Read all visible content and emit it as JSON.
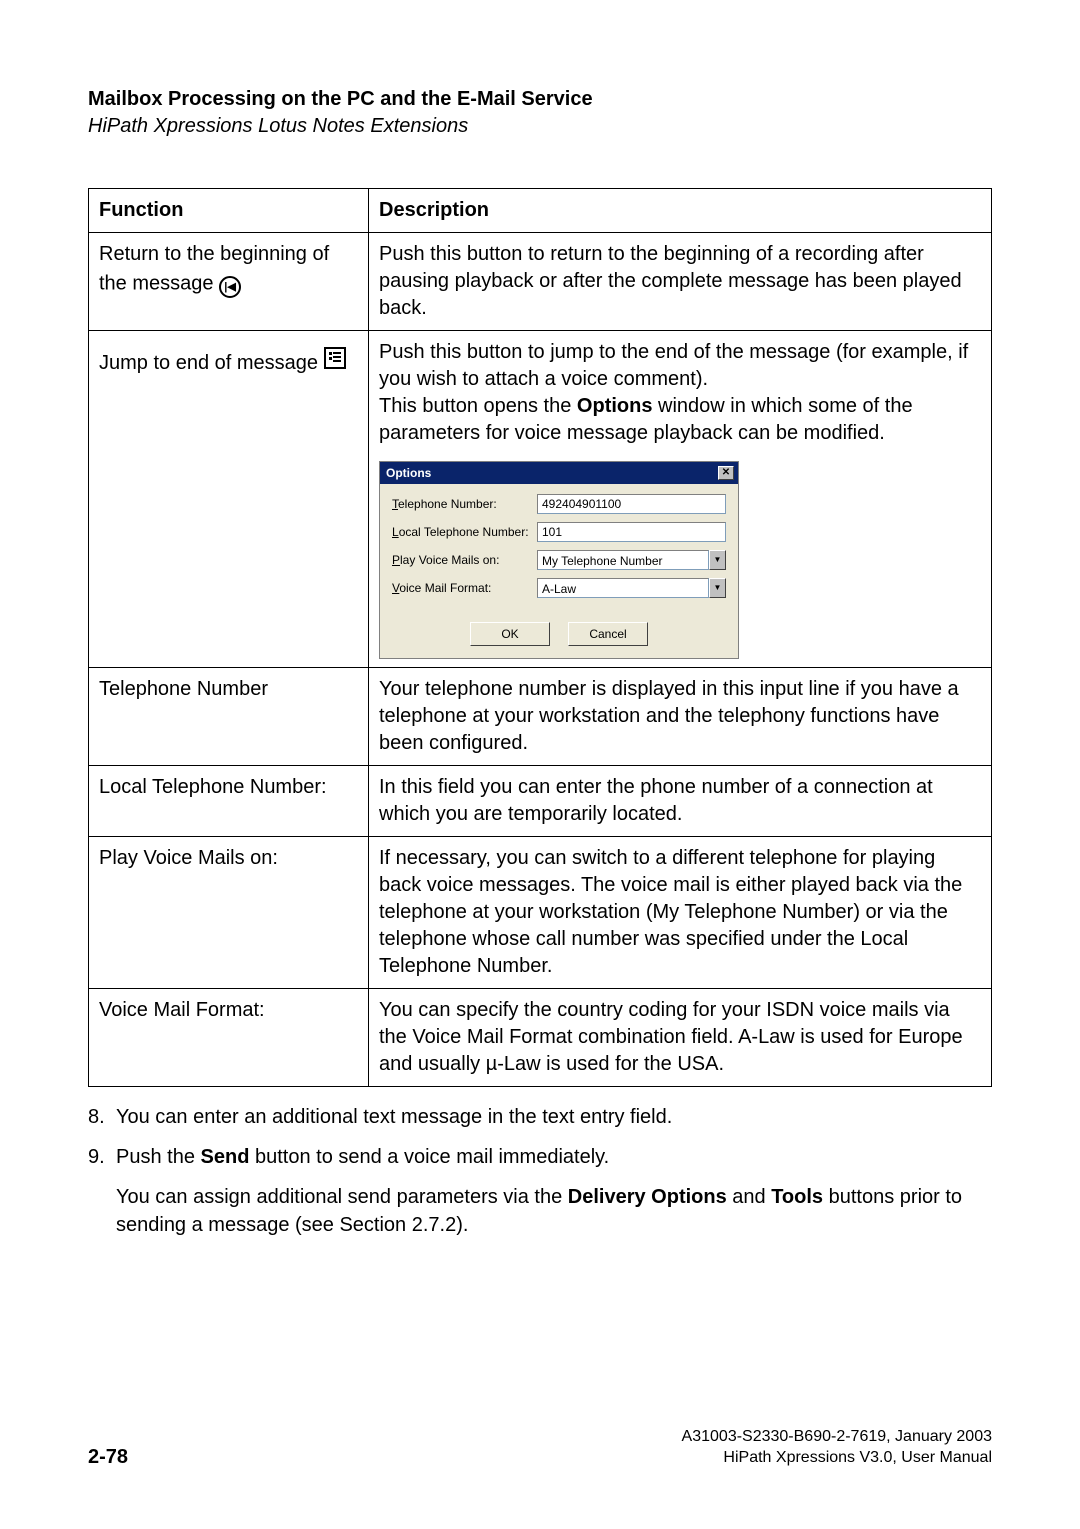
{
  "header": {
    "title": "Mailbox Processing on the PC and the E-Mail Service",
    "subtitle": "HiPath Xpressions Lotus Notes Extensions"
  },
  "table": {
    "headers": {
      "function": "Function",
      "description": "Description"
    },
    "row1": {
      "function": "Return to the beginning of the message",
      "description": "Push this button to return to the beginning of a recording after pausing playback or after the complete message has been played back."
    },
    "row2": {
      "function": "Jump to end of message",
      "description_p1": "Push this button to jump to the end of the message (for example, if you wish to attach a voice comment).",
      "description_p2_pre": "This button opens the ",
      "description_p2_bold": "Options",
      "description_p2_post": " window in which some of the parameters for voice message playback can be modified."
    },
    "options_dialog": {
      "title": "Options",
      "telephone_label": "Telephone Number:",
      "telephone_value": "492404901100",
      "local_label": "Local Telephone Number:",
      "local_value": "101",
      "play_label": "Play Voice Mails on:",
      "play_value": "My Telephone Number",
      "format_label": "Voice Mail Format:",
      "format_value": "A-Law",
      "ok_button": "OK",
      "cancel_button": "Cancel",
      "colors": {
        "titlebar_bg": "#0a246a",
        "titlebar_fg": "#ffffff",
        "body_bg": "#ece9d8"
      }
    },
    "row3": {
      "function": "Telephone Number",
      "description": "Your telephone number is displayed in this input line if you have a telephone at your workstation and the telephony functions have been configured."
    },
    "row4": {
      "function": "Local Telephone Number:",
      "description": "In this field you can enter the phone number of a connection at which you are temporarily located."
    },
    "row5": {
      "function": "Play Voice Mails on:",
      "description": "If necessary, you can switch to a different telephone for playing back voice messages. The voice mail is either played back via the telephone at your workstation (My Telephone Number) or via the telephone whose call number was specified under the Local Telephone Number."
    },
    "row6": {
      "function": "Voice Mail Format:",
      "description": "You can specify the country coding for your ISDN voice mails via the Voice Mail Format combination field. A-Law is used for Europe and usually µ-Law is used for the USA."
    }
  },
  "body": {
    "item8_num": "8.",
    "item8_text": "You can enter an additional text message in the text entry field.",
    "item9_num": "9.",
    "item9_pre": "Push the ",
    "item9_bold": "Send",
    "item9_post": " button to send a voice mail immediately.",
    "para_pre": "You can assign additional send parameters via the ",
    "para_bold1": "Delivery Options",
    "para_mid": " and ",
    "para_bold2": "Tools",
    "para_post": " buttons prior to sending a message (see Section 2.7.2)."
  },
  "footer": {
    "page": "2-78",
    "doc_id": "A31003-S2330-B690-2-7619, January 2003",
    "manual": "HiPath Xpressions V3.0, User Manual"
  }
}
